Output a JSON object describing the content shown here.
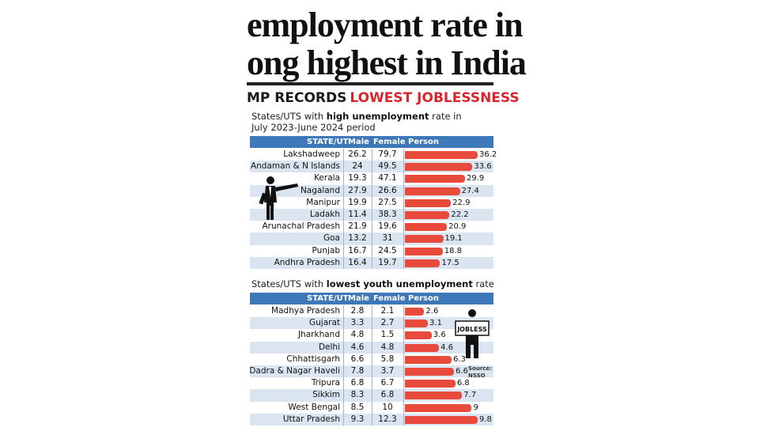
{
  "headline": {
    "line1": "employment rate in",
    "line2": "ong highest in India"
  },
  "banner": {
    "dark": "MP RECORDS",
    "red": "LOWEST JOBLESSNESS"
  },
  "source": "Source: NSSO",
  "jobless_sign": "JOBLESS",
  "colors": {
    "header_bg": "#3f78b8",
    "bar": "#e84b3c",
    "row_alt": "#dbe4f1",
    "banner_red": "#d8262e"
  },
  "icons": [
    "pointing-man-icon",
    "jobless-man-icon"
  ],
  "chart_data": [
    {
      "type": "table",
      "subtitle_pre": "States/UTS with ",
      "subtitle_bold": "high unemployment",
      "subtitle_post": " rate in",
      "subtitle_line2": "July 2023-June 2024 period",
      "columns": [
        "STATE/UT",
        "Male",
        "Female",
        "Person"
      ],
      "rows": [
        {
          "state": "Lakshadweep",
          "male": "26.2",
          "female": "79.7",
          "person": 36.2
        },
        {
          "state": "Andaman & N Islands",
          "male": "24",
          "female": "49.5",
          "person": 33.6
        },
        {
          "state": "Kerala",
          "male": "19.3",
          "female": "47.1",
          "person": 29.9
        },
        {
          "state": "Nagaland",
          "male": "27.9",
          "female": "26.6",
          "person": 27.4
        },
        {
          "state": "Manipur",
          "male": "19.9",
          "female": "27.5",
          "person": 22.9
        },
        {
          "state": "Ladakh",
          "male": "11.4",
          "female": "38.3",
          "person": 22.2
        },
        {
          "state": "Arunachal Pradesh",
          "male": "21.9",
          "female": "19.6",
          "person": 20.9
        },
        {
          "state": "Goa",
          "male": "13.2",
          "female": "31",
          "person": 19.1
        },
        {
          "state": "Punjab",
          "male": "16.7",
          "female": "24.5",
          "person": 18.8
        },
        {
          "state": "Andhra Pradesh",
          "male": "16.4",
          "female": "19.7",
          "person": 17.5
        }
      ],
      "bar_max": 36.2
    },
    {
      "type": "table",
      "subtitle_pre": "States/UTS with ",
      "subtitle_bold": "lowest youth unemployment",
      "subtitle_post": " rate",
      "columns": [
        "STATE/UT",
        "Male",
        "Female",
        "Person"
      ],
      "rows": [
        {
          "state": "Madhya Pradesh",
          "male": "2.8",
          "female": "2.1",
          "person": 2.6
        },
        {
          "state": "Gujarat",
          "male": "3.3",
          "female": "2.7",
          "person": 3.1
        },
        {
          "state": "Jharkhand",
          "male": "4.8",
          "female": "1.5",
          "person": 3.6
        },
        {
          "state": "Delhi",
          "male": "4.6",
          "female": "4.8",
          "person": 4.6
        },
        {
          "state": "Chhattisgarh",
          "male": "6.6",
          "female": "5.8",
          "person": 6.3
        },
        {
          "state": "Dadra & Nagar Haveli",
          "male": "7.8",
          "female": "3.7",
          "person": 6.6
        },
        {
          "state": "Tripura",
          "male": "6.8",
          "female": "6.7",
          "person": 6.8
        },
        {
          "state": "Sikkim",
          "male": "8.3",
          "female": "6.8",
          "person": 7.7
        },
        {
          "state": "West Bengal",
          "male": "8.5",
          "female": "10",
          "person": 9
        },
        {
          "state": "Uttar Pradesh",
          "male": "9.3",
          "female": "12.3",
          "person": 9.8
        }
      ],
      "bar_max": 9.8
    }
  ]
}
